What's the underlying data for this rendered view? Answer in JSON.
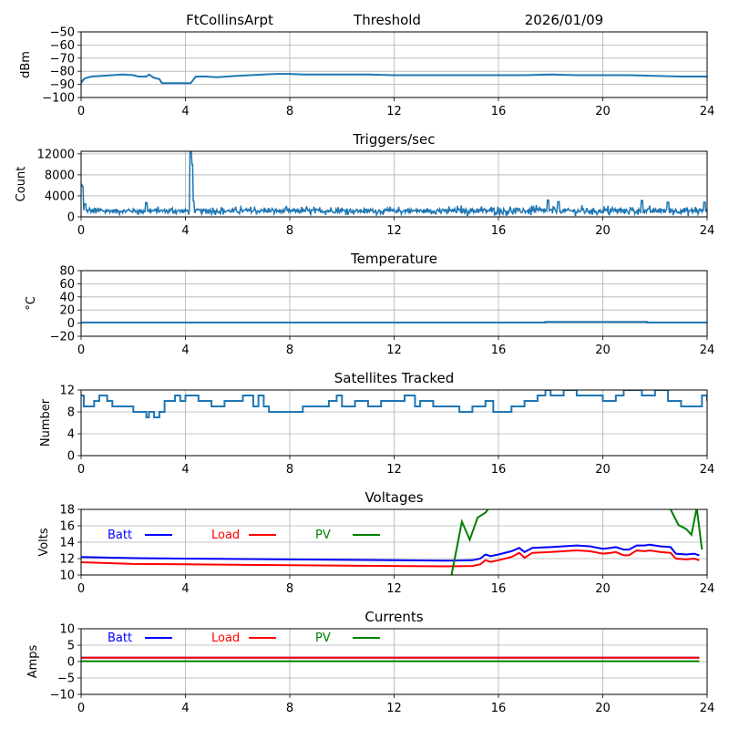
{
  "header": {
    "station": "FtCollinsArpt",
    "mode": "Threshold",
    "date": "2026/01/09"
  },
  "chart_data": [
    {
      "id": "signal",
      "type": "line",
      "title": "",
      "ylabel": "dBm",
      "xlabel": "",
      "xlim": [
        0,
        24
      ],
      "ylim": [
        -100,
        -50
      ],
      "xticks": [
        0,
        4,
        8,
        12,
        16,
        20,
        24
      ],
      "yticks": [
        -100,
        -90,
        -80,
        -70,
        -60,
        -50
      ],
      "grid": true,
      "series": [
        {
          "name": "signal",
          "color": "#1f77b4",
          "x": [
            0,
            0.1,
            0.2,
            0.4,
            0.8,
            1.2,
            1.6,
            2.0,
            2.2,
            2.5,
            2.6,
            2.8,
            3.0,
            3.1,
            3.5,
            4.0,
            4.2,
            4.4,
            4.8,
            5.2,
            5.6,
            6.0,
            6.5,
            7.0,
            7.5,
            8.0,
            8.5,
            9.0,
            10.0,
            11.0,
            12.0,
            13.0,
            14.0,
            15.0,
            16.0,
            17.0,
            18.0,
            19.0,
            20.0,
            21.0,
            22.0,
            23.0,
            24.0
          ],
          "y": [
            -89,
            -86,
            -85,
            -84,
            -83.5,
            -83,
            -82.5,
            -83,
            -84,
            -84,
            -82.5,
            -85,
            -86,
            -89,
            -89,
            -89,
            -89,
            -84,
            -84,
            -84.5,
            -84,
            -83.5,
            -83,
            -82.5,
            -82,
            -82,
            -82.5,
            -82.5,
            -82.5,
            -82.5,
            -83,
            -83,
            -83,
            -83,
            -83,
            -83,
            -82.5,
            -83,
            -83,
            -83,
            -83.5,
            -84,
            -84
          ]
        }
      ]
    },
    {
      "id": "triggers",
      "type": "line",
      "title": "Triggers/sec",
      "ylabel": "Count",
      "xlabel": "",
      "xlim": [
        0,
        24
      ],
      "ylim": [
        0,
        12500
      ],
      "xticks": [
        0,
        4,
        8,
        12,
        16,
        20,
        24
      ],
      "yticks": [
        0,
        4000,
        8000,
        12000
      ],
      "grid": true,
      "series": [
        {
          "name": "triggers",
          "color": "#1f77b4",
          "baseline": 1100,
          "noise": 1200,
          "spikes": [
            {
              "x": 0.0,
              "y": 6200
            },
            {
              "x": 0.05,
              "y": 5800
            },
            {
              "x": 0.15,
              "y": 2500
            },
            {
              "x": 4.2,
              "y": 12500
            },
            {
              "x": 4.25,
              "y": 10000
            },
            {
              "x": 4.3,
              "y": 3000
            },
            {
              "x": 2.5,
              "y": 2700
            },
            {
              "x": 17.9,
              "y": 3200
            },
            {
              "x": 18.3,
              "y": 2900
            },
            {
              "x": 21.5,
              "y": 3100
            },
            {
              "x": 22.5,
              "y": 2800
            },
            {
              "x": 23.9,
              "y": 2800
            }
          ]
        }
      ]
    },
    {
      "id": "temperature",
      "type": "line",
      "title": "Temperature",
      "ylabel": "°C",
      "xlabel": "",
      "xlim": [
        0,
        24
      ],
      "ylim": [
        -20,
        80
      ],
      "xticks": [
        0,
        4,
        8,
        12,
        16,
        20,
        24
      ],
      "yticks": [
        -20,
        0,
        20,
        40,
        60,
        80
      ],
      "grid": true,
      "series": [
        {
          "name": "temperature",
          "color": "#1f77b4",
          "x": [
            0,
            17.8,
            17.8,
            21.7,
            21.7,
            24
          ],
          "y": [
            1,
            1,
            2,
            2,
            1,
            1
          ]
        }
      ]
    },
    {
      "id": "satellites",
      "type": "line",
      "title": "Satellites Tracked",
      "ylabel": "Number",
      "xlabel": "",
      "xlim": [
        0,
        24
      ],
      "ylim": [
        0,
        12
      ],
      "xticks": [
        0,
        4,
        8,
        12,
        16,
        20,
        24
      ],
      "yticks": [
        0,
        4,
        8,
        12
      ],
      "grid": true,
      "series": [
        {
          "name": "satellites",
          "color": "#1f77b4",
          "step": true,
          "x": [
            0,
            0.1,
            0.5,
            0.7,
            1.0,
            1.2,
            1.5,
            2.0,
            2.4,
            2.5,
            2.6,
            2.8,
            3.0,
            3.2,
            3.4,
            3.6,
            3.8,
            4.0,
            4.5,
            5.0,
            5.5,
            6.0,
            6.2,
            6.6,
            6.8,
            7.0,
            7.2,
            8.0,
            8.5,
            9.0,
            9.5,
            9.8,
            10.0,
            10.5,
            11.0,
            11.5,
            12.0,
            12.4,
            12.8,
            13.0,
            13.5,
            14.0,
            14.5,
            15.0,
            15.5,
            15.8,
            16.5,
            17.0,
            17.5,
            17.8,
            18.0,
            18.5,
            19.0,
            19.5,
            20.0,
            20.5,
            20.8,
            21.5,
            22.0,
            22.5,
            23.0,
            23.5,
            23.8,
            24.0
          ],
          "y": [
            11,
            9,
            10,
            11,
            10,
            9,
            9,
            8,
            8,
            7,
            8,
            7,
            8,
            10,
            10,
            11,
            10,
            11,
            10,
            9,
            10,
            10,
            11,
            9,
            11,
            9,
            8,
            8,
            9,
            9,
            10,
            11,
            9,
            10,
            9,
            10,
            10,
            11,
            9,
            10,
            9,
            9,
            8,
            9,
            10,
            8,
            9,
            10,
            11,
            12,
            11,
            12,
            11,
            11,
            10,
            11,
            12,
            11,
            12,
            10,
            9,
            9,
            11,
            10
          ]
        }
      ]
    },
    {
      "id": "voltages",
      "type": "line",
      "title": "Voltages",
      "ylabel": "Volts",
      "xlabel": "",
      "xlim": [
        0,
        24
      ],
      "ylim": [
        10,
        18
      ],
      "xticks": [
        0,
        4,
        8,
        12,
        16,
        20,
        24
      ],
      "yticks": [
        10,
        12,
        14,
        16,
        18
      ],
      "grid": true,
      "legend": [
        {
          "label": "Batt",
          "color": "#0000ff"
        },
        {
          "label": "Load",
          "color": "#ff0000"
        },
        {
          "label": "PV",
          "color": "#008000"
        }
      ],
      "series": [
        {
          "name": "Batt",
          "color": "#0000ff",
          "x": [
            0,
            2,
            4,
            8,
            12,
            14,
            15,
            15.3,
            15.5,
            15.7,
            16,
            16.5,
            16.8,
            17.0,
            17.3,
            18,
            19,
            19.5,
            20,
            20.3,
            20.5,
            20.8,
            21.0,
            21.3,
            21.6,
            21.8,
            22.2,
            22.6,
            22.8,
            23.2,
            23.5,
            23.7
          ],
          "y": [
            12.2,
            12.05,
            12.0,
            11.9,
            11.8,
            11.75,
            11.8,
            12.0,
            12.5,
            12.3,
            12.5,
            12.9,
            13.3,
            12.8,
            13.3,
            13.4,
            13.6,
            13.5,
            13.2,
            13.3,
            13.4,
            13.1,
            13.1,
            13.6,
            13.6,
            13.7,
            13.5,
            13.4,
            12.6,
            12.5,
            12.6,
            12.4
          ]
        },
        {
          "name": "Load",
          "color": "#ff0000",
          "x": [
            0,
            2,
            4,
            8,
            12,
            14,
            15,
            15.3,
            15.5,
            15.7,
            16,
            16.5,
            16.8,
            17.0,
            17.3,
            18,
            19,
            19.5,
            20,
            20.3,
            20.5,
            20.8,
            21.0,
            21.3,
            21.6,
            21.8,
            22.2,
            22.6,
            22.8,
            23.2,
            23.5,
            23.7
          ],
          "y": [
            11.55,
            11.35,
            11.3,
            11.2,
            11.1,
            11.05,
            11.1,
            11.3,
            11.8,
            11.6,
            11.8,
            12.2,
            12.7,
            12.1,
            12.7,
            12.8,
            13.0,
            12.9,
            12.6,
            12.7,
            12.8,
            12.4,
            12.4,
            13.0,
            12.9,
            13.0,
            12.8,
            12.7,
            12.0,
            11.9,
            12.0,
            11.8
          ]
        },
        {
          "name": "PV",
          "color": "#008000",
          "segments": [
            {
              "x": [
                14.2,
                14.6,
                14.9,
                15.2,
                15.5,
                15.6
              ],
              "y": [
                10.0,
                16.5,
                14.3,
                17.0,
                17.6,
                18.0
              ]
            },
            {
              "x": [
                22.6,
                22.9,
                23.2,
                23.4,
                23.6,
                23.8
              ],
              "y": [
                18.0,
                16.1,
                15.6,
                14.9,
                18.2,
                13.1
              ]
            }
          ]
        }
      ]
    },
    {
      "id": "currents",
      "type": "line",
      "title": "Currents",
      "ylabel": "Amps",
      "xlabel": "",
      "xlim": [
        0,
        24
      ],
      "ylim": [
        -10,
        10
      ],
      "xticks": [
        0,
        4,
        8,
        12,
        16,
        20,
        24
      ],
      "yticks": [
        -10,
        -5,
        0,
        5,
        10
      ],
      "grid": true,
      "legend": [
        {
          "label": "Batt",
          "color": "#0000ff"
        },
        {
          "label": "Load",
          "color": "#ff0000"
        },
        {
          "label": "PV",
          "color": "#008000"
        }
      ],
      "series": [
        {
          "name": "Batt",
          "color": "#0000ff",
          "x": [
            0,
            23.7
          ],
          "y": [
            1.2,
            1.2
          ]
        },
        {
          "name": "Load",
          "color": "#ff0000",
          "x": [
            0,
            23.7
          ],
          "y": [
            1.2,
            1.2
          ]
        },
        {
          "name": "PV",
          "color": "#008000",
          "x": [
            0,
            23.7
          ],
          "y": [
            0.1,
            0.1
          ]
        }
      ]
    }
  ]
}
